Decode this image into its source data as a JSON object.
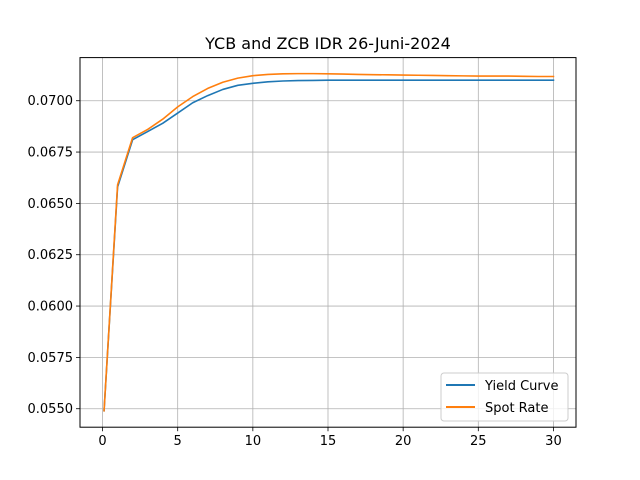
{
  "chart_data": {
    "type": "line",
    "title": "YCB and ZCB IDR 26-Juni-2024",
    "xlabel": "",
    "ylabel": "",
    "xlim": [
      -1.5,
      31.5
    ],
    "ylim": [
      0.0541,
      0.0721
    ],
    "xticks": [
      0,
      5,
      10,
      15,
      20,
      25,
      30
    ],
    "xtick_labels": [
      "0",
      "5",
      "10",
      "15",
      "20",
      "25",
      "30"
    ],
    "yticks": [
      0.055,
      0.0575,
      0.06,
      0.0625,
      0.065,
      0.0675,
      0.07
    ],
    "ytick_labels": [
      "0.0550",
      "0.0575",
      "0.0600",
      "0.0625",
      "0.0650",
      "0.0675",
      "0.0700"
    ],
    "grid": true,
    "legend_position": "lower-right",
    "series": [
      {
        "name": "Yield Curve",
        "color": "#1f77b4",
        "x": [
          0.1,
          1,
          2,
          3,
          4,
          5,
          6,
          7,
          8,
          9,
          10,
          11,
          12,
          13,
          14,
          15,
          16,
          17,
          18,
          19,
          20,
          21,
          22,
          23,
          24,
          25,
          26,
          27,
          28,
          29,
          30
        ],
        "y": [
          0.0549,
          0.0658,
          0.0681,
          0.0685,
          0.0689,
          0.0694,
          0.0699,
          0.07025,
          0.07055,
          0.07075,
          0.07085,
          0.07092,
          0.07096,
          0.07098,
          0.07099,
          0.071,
          0.071,
          0.071,
          0.071,
          0.071,
          0.071,
          0.071,
          0.071,
          0.071,
          0.071,
          0.071,
          0.071,
          0.071,
          0.071,
          0.071,
          0.071
        ]
      },
      {
        "name": "Spot Rate",
        "color": "#ff7f0e",
        "x": [
          0.1,
          1,
          2,
          3,
          4,
          5,
          6,
          7,
          8,
          9,
          10,
          11,
          12,
          13,
          14,
          15,
          16,
          17,
          18,
          19,
          20,
          21,
          22,
          23,
          24,
          25,
          26,
          27,
          28,
          29,
          30
        ],
        "y": [
          0.0549,
          0.0659,
          0.0682,
          0.0686,
          0.0691,
          0.0697,
          0.0702,
          0.0706,
          0.0709,
          0.0711,
          0.07122,
          0.07128,
          0.07131,
          0.07132,
          0.07132,
          0.07131,
          0.0713,
          0.07128,
          0.07127,
          0.07126,
          0.07125,
          0.07124,
          0.07123,
          0.07122,
          0.07121,
          0.0712,
          0.0712,
          0.0712,
          0.07119,
          0.07118,
          0.07118
        ]
      }
    ]
  }
}
